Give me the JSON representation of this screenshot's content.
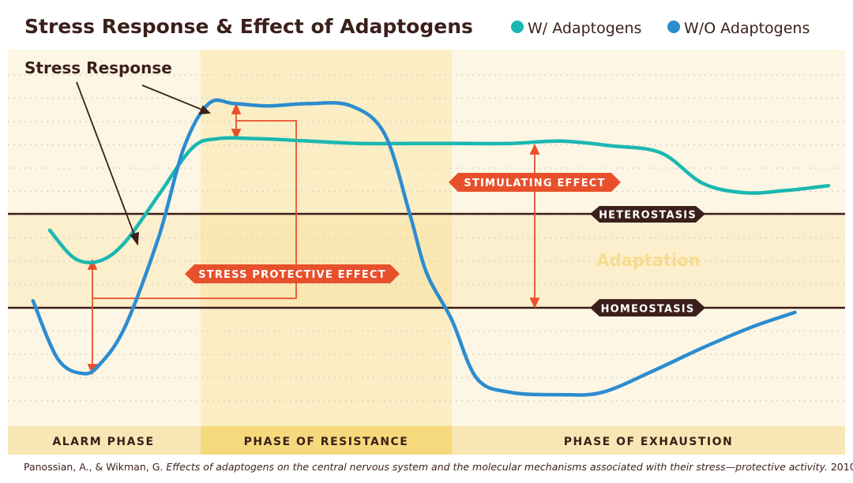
{
  "title": "Stress Response & Effect of Adaptogens",
  "legend": [
    {
      "label": "W/ Adaptogens",
      "color": "#1ab8b0"
    },
    {
      "label": "W/O Adaptogens",
      "color": "#2c8cd0"
    }
  ],
  "annotations": {
    "stress_response": "Stress Response",
    "stimulating_effect": "STIMULATING EFFECT",
    "stress_protective_effect": "STRESS PROTECTIVE EFFECT",
    "heterostasis": "HETEROSTASIS",
    "homeostasis": "HOMEOSTASIS",
    "adaptation": "Adaptation"
  },
  "phases": [
    "ALARM PHASE",
    "PHASE OF RESISTANCE",
    "PHASE OF EXHAUSTION"
  ],
  "footnote": {
    "authors": "Panossian, A., & Wikman, G.",
    "title": "Effects of adaptogens on the central nervous system and the molecular mechanisms associated with their stress—protective activity.",
    "year": "2010"
  },
  "colors": {
    "with_adaptogens": "#1ab8b0",
    "without_adaptogens": "#2c8cd0",
    "accent_orange": "#e8502c",
    "dark_brown": "#3b1f1a",
    "phase_light": "#fdf6e4",
    "phase_mid": "#fbeec4",
    "adaptation_band": "#fbedc9"
  },
  "chart_data": {
    "type": "line",
    "xlabel": "",
    "ylabel": "",
    "xlim": [
      0,
      100
    ],
    "ylim": [
      -40,
      100
    ],
    "reference_lines": [
      {
        "name": "HETEROSTASIS",
        "y": 40
      },
      {
        "name": "HOMEOSTASIS",
        "y": 0
      }
    ],
    "phases": [
      {
        "label": "ALARM PHASE",
        "x_start": 0,
        "x_end": 22
      },
      {
        "label": "PHASE OF RESISTANCE",
        "x_start": 22,
        "x_end": 52
      },
      {
        "label": "PHASE OF EXHAUSTION",
        "x_start": 52,
        "x_end": 100
      }
    ],
    "series": [
      {
        "name": "W/ Adaptogens",
        "color": "#1ab8b0",
        "x": [
          5,
          8,
          11,
          14,
          18,
          22,
          25,
          30,
          36,
          42,
          48,
          54,
          60,
          66,
          72,
          78,
          83,
          88,
          93,
          98
        ],
        "y": [
          33,
          21,
          20,
          28,
          48,
          68,
          72,
          72,
          71,
          70,
          70,
          70,
          70,
          71,
          69,
          66,
          53,
          49,
          50,
          52
        ]
      },
      {
        "name": "W/O Adaptogens",
        "color": "#2c8cd0",
        "x": [
          3,
          6,
          9,
          11,
          14,
          18,
          21,
          24,
          27,
          31,
          36,
          41,
          45,
          48,
          50,
          53,
          56,
          60,
          66,
          71,
          77,
          83,
          89,
          94
        ],
        "y": [
          3,
          -22,
          -28,
          -24,
          -8,
          30,
          68,
          87,
          87,
          86,
          87,
          86,
          74,
          40,
          15,
          -5,
          -30,
          -36,
          -37,
          -36,
          -27,
          -17,
          -8,
          -2
        ]
      }
    ]
  }
}
